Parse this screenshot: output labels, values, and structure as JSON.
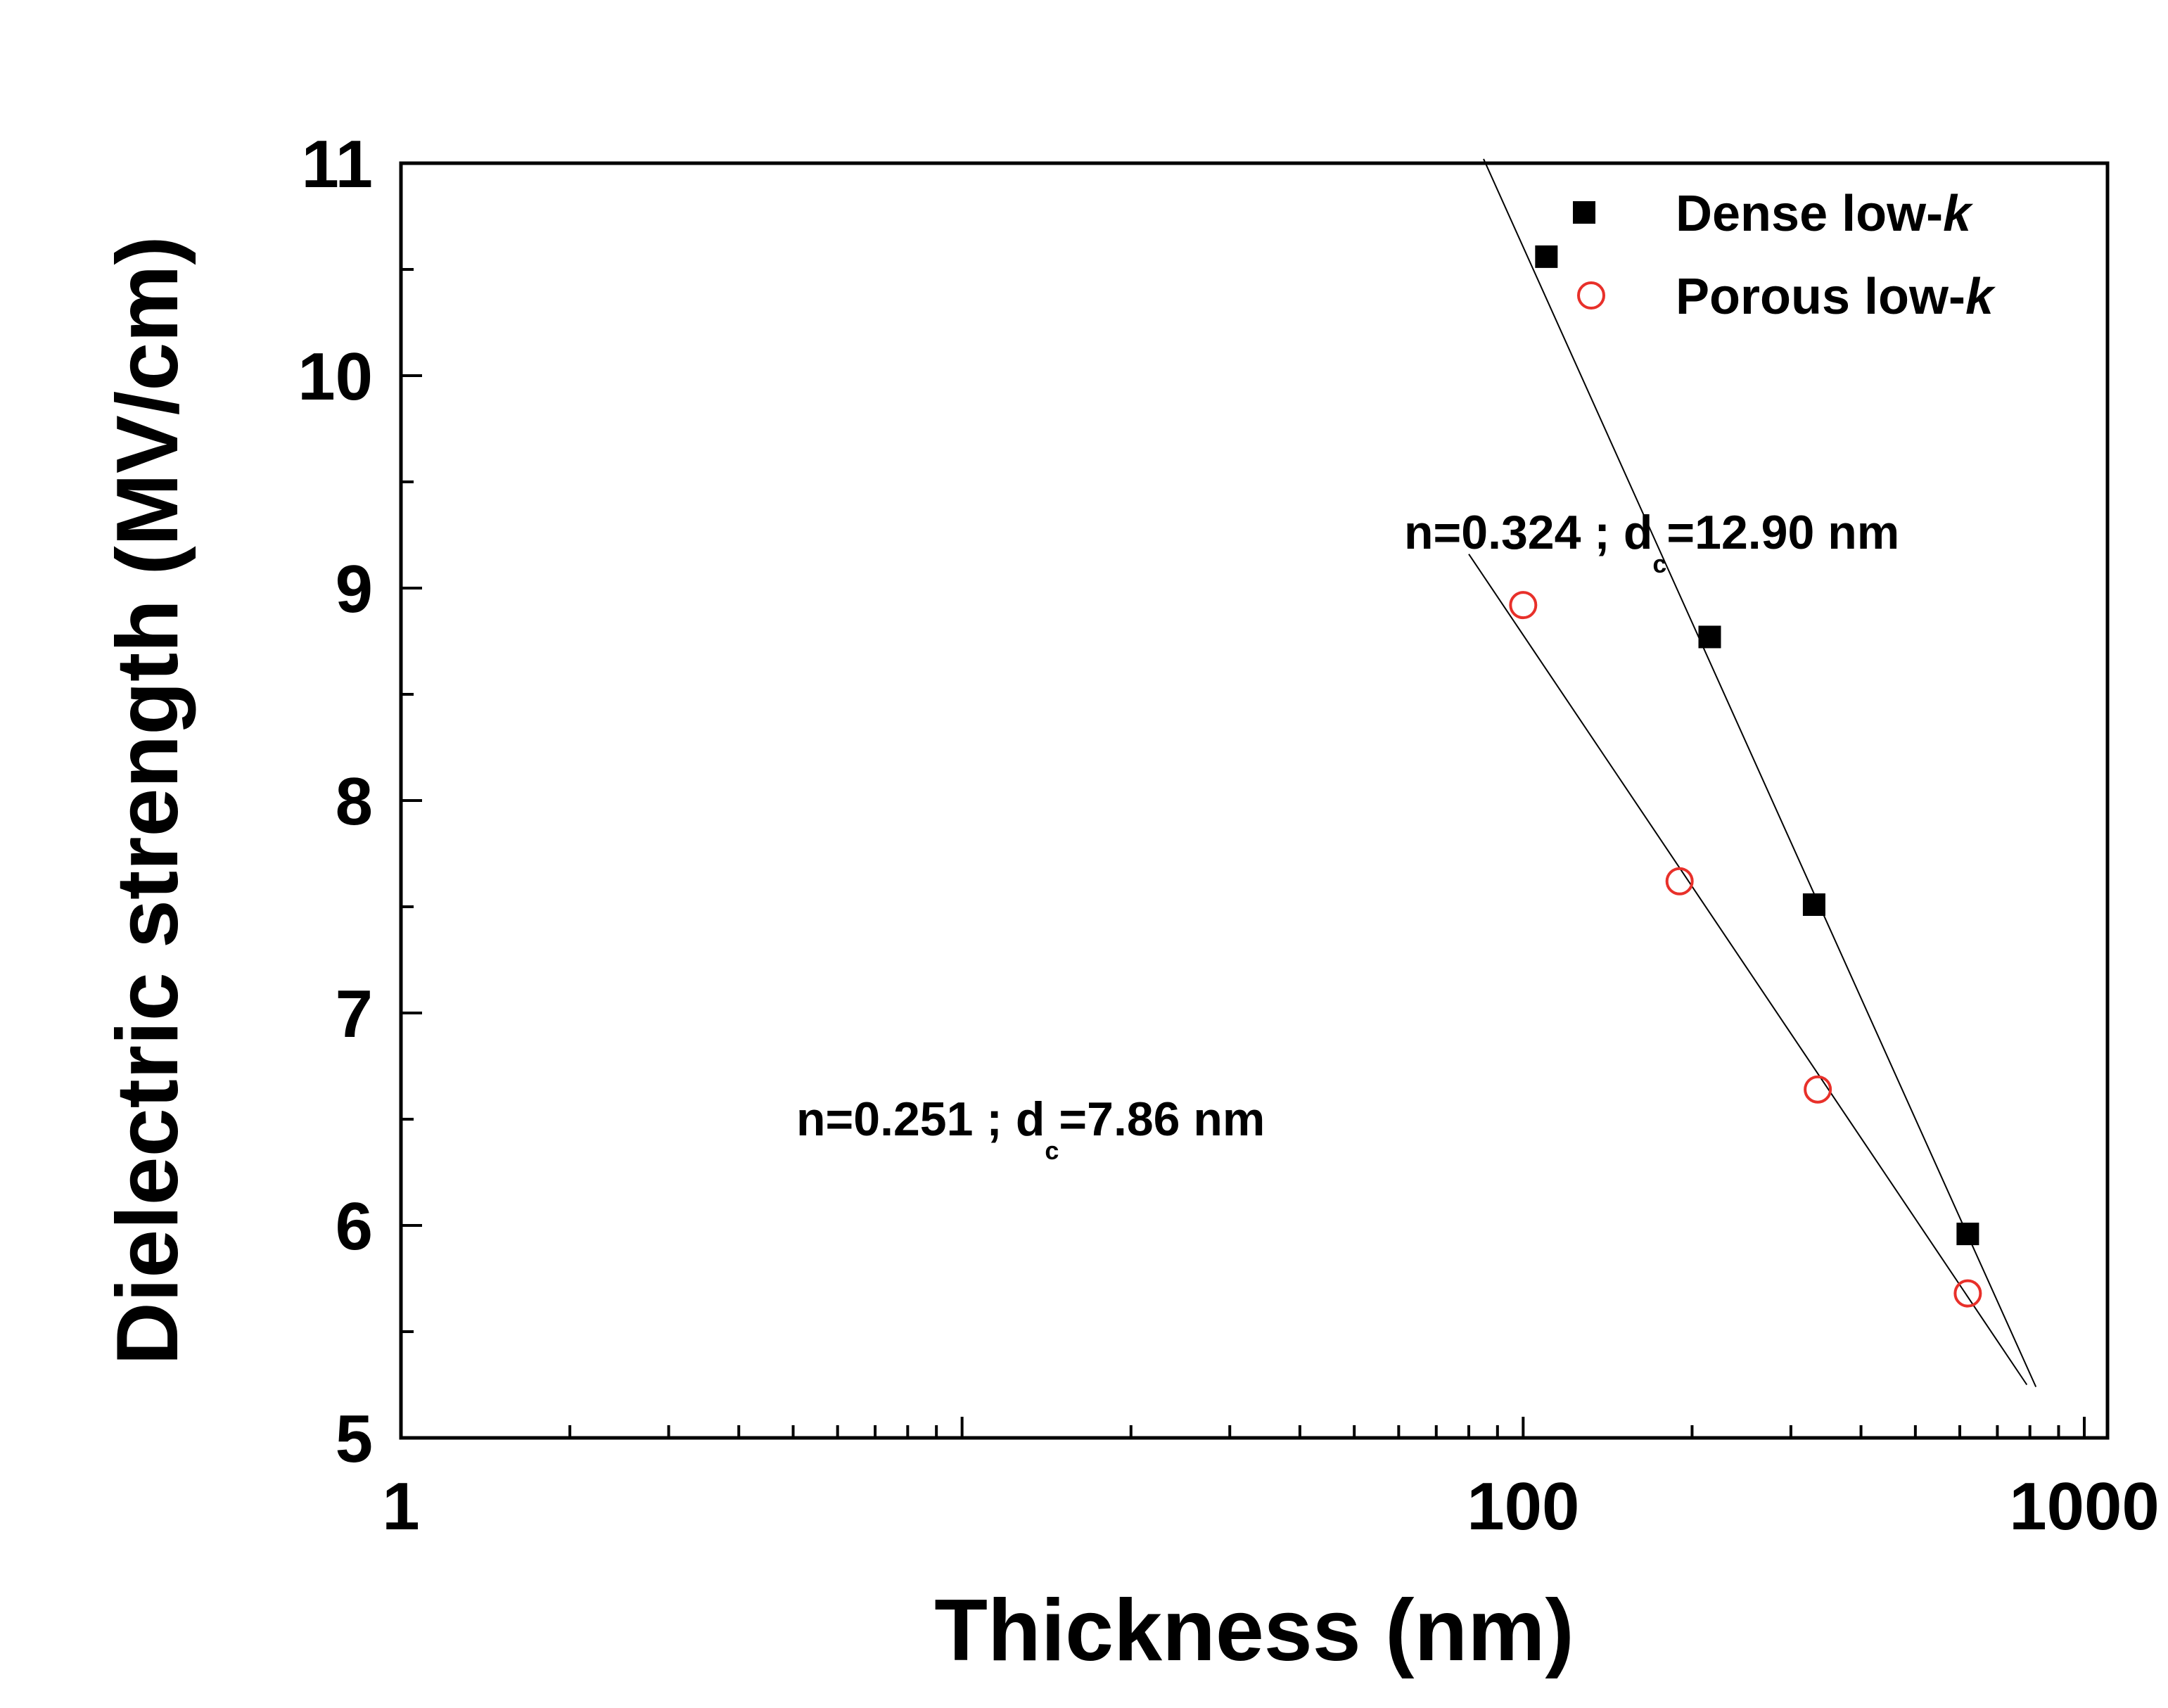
{
  "chart_data": {
    "type": "scatter",
    "xscale": "log",
    "xlim": [
      1,
      1100
    ],
    "ylim": [
      5,
      11
    ],
    "xlabel": "Thickness (nm)",
    "ylabel": "Dielectric strength (MV/cm)",
    "xticks": [
      {
        "value": 1,
        "label": "1"
      },
      {
        "value": 100,
        "label": "100"
      },
      {
        "value": 1000,
        "label": "1000"
      }
    ],
    "yticks": [
      {
        "value": 5,
        "label": "5"
      },
      {
        "value": 6,
        "label": "6"
      },
      {
        "value": 7,
        "label": "7"
      },
      {
        "value": 8,
        "label": "8"
      },
      {
        "value": 9,
        "label": "9"
      },
      {
        "value": 10,
        "label": "10"
      },
      {
        "value": 11,
        "label": "11"
      }
    ],
    "series": [
      {
        "name": "Dense low-",
        "name_italic": "k",
        "marker": "square-filled",
        "color": "#000000",
        "x": [
          110,
          215,
          330,
          620
        ],
        "y": [
          10.56,
          8.77,
          7.51,
          5.96
        ],
        "fit_line": {
          "x": [
            85,
            820
          ],
          "y": [
            11.02,
            5.24
          ]
        }
      },
      {
        "name": "Porous low-",
        "name_italic": "k",
        "marker": "circle-open",
        "color": "#e8302a",
        "x": [
          100,
          190,
          335,
          620
        ],
        "y": [
          8.92,
          7.62,
          6.64,
          5.68
        ],
        "fit_line": {
          "x": [
            80,
            790
          ],
          "y": [
            9.16,
            5.25
          ]
        }
      }
    ],
    "annotations": [
      {
        "prefix": "n=0.324 ; d",
        "sub": "c",
        "suffix": "=12.90 nm"
      },
      {
        "prefix": "n=0.251 ; d",
        "sub": "c",
        "suffix": "=7.86 nm"
      }
    ],
    "legend_position": "top-right"
  }
}
